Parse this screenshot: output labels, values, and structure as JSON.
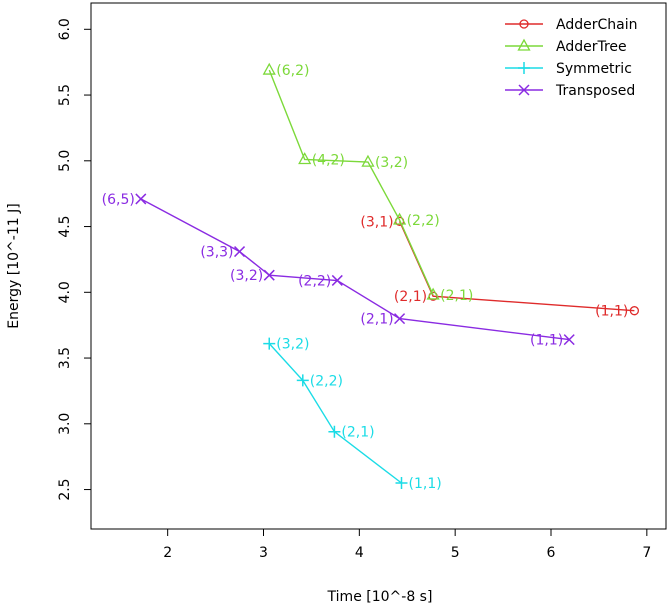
{
  "chart_data": {
    "type": "line",
    "xlabel": "Time [10^-8 s]",
    "ylabel": "Energy [10^-11 J]",
    "xlim": [
      1.2,
      7.2
    ],
    "ylim": [
      2.2,
      6.2
    ],
    "xticks": [
      2,
      3,
      4,
      5,
      6,
      7
    ],
    "yticks": [
      2.5,
      3.0,
      3.5,
      4.0,
      4.5,
      5.0,
      5.5,
      6.0
    ],
    "ytick_labels": [
      "2.5",
      "3.0",
      "3.5",
      "4.0",
      "4.5",
      "5.0",
      "5.5",
      "6.0"
    ],
    "legend_position": "top-right",
    "series": [
      {
        "name": "AdderChain",
        "color": "#DF2B2B",
        "marker": "circle",
        "points": [
          {
            "x": 6.87,
            "y": 3.86,
            "label": "(1,1)",
            "label_side": "left"
          },
          {
            "x": 4.77,
            "y": 3.97,
            "label": "(2,1)",
            "label_side": "left"
          },
          {
            "x": 4.42,
            "y": 4.54,
            "label": "(3,1)",
            "label_side": "left"
          }
        ]
      },
      {
        "name": "AdderTree",
        "color": "#7CD93A",
        "marker": "triangle",
        "points": [
          {
            "x": 3.06,
            "y": 5.69,
            "label": "(6,2)",
            "label_side": "right"
          },
          {
            "x": 3.43,
            "y": 5.01,
            "label": "(4,2)",
            "label_side": "right"
          },
          {
            "x": 4.09,
            "y": 4.99,
            "label": "(3,2)",
            "label_side": "right"
          },
          {
            "x": 4.42,
            "y": 4.55,
            "label": "(2,2)",
            "label_side": "right"
          },
          {
            "x": 4.77,
            "y": 3.98,
            "label": "(2,1)",
            "label_side": "right"
          }
        ]
      },
      {
        "name": "Symmetric",
        "color": "#1BDCE6",
        "marker": "plus",
        "points": [
          {
            "x": 3.06,
            "y": 3.61,
            "label": "(3,2)",
            "label_side": "right"
          },
          {
            "x": 3.41,
            "y": 3.33,
            "label": "(2,2)",
            "label_side": "right"
          },
          {
            "x": 3.74,
            "y": 2.94,
            "label": "(2,1)",
            "label_side": "right"
          },
          {
            "x": 4.44,
            "y": 2.55,
            "label": "(1,1)",
            "label_side": "right"
          }
        ]
      },
      {
        "name": "Transposed",
        "color": "#8A2BE2",
        "marker": "x",
        "points": [
          {
            "x": 1.72,
            "y": 4.71,
            "label": "(6,5)",
            "label_side": "left"
          },
          {
            "x": 2.75,
            "y": 4.31,
            "label": "(3,3)",
            "label_side": "left"
          },
          {
            "x": 3.06,
            "y": 4.13,
            "label": "(3,2)",
            "label_side": "left"
          },
          {
            "x": 3.77,
            "y": 4.09,
            "label": "(2,2)",
            "label_side": "left"
          },
          {
            "x": 4.42,
            "y": 3.8,
            "label": "(2,1)",
            "label_side": "left"
          },
          {
            "x": 6.19,
            "y": 3.64,
            "label": "(1,1)",
            "label_side": "left"
          }
        ]
      }
    ]
  }
}
